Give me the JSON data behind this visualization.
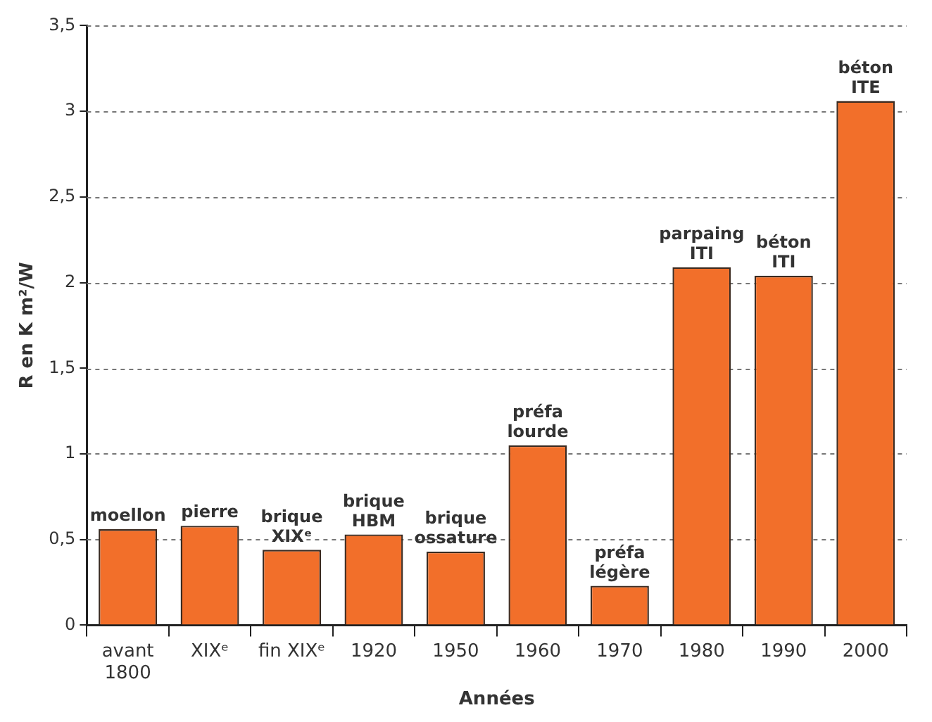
{
  "chart_data": {
    "type": "bar",
    "xlabel": "Années",
    "ylabel": "R en K m²/W",
    "categories": [
      "avant\n1800",
      "XIXᵉ",
      "fin XIXᵉ",
      "1920",
      "1950",
      "1960",
      "1970",
      "1980",
      "1990",
      "2000"
    ],
    "values": [
      0.56,
      0.58,
      0.44,
      0.53,
      0.43,
      1.05,
      0.23,
      2.09,
      2.04,
      3.06
    ],
    "color": "#f26f2a",
    "ylim": [
      0,
      3.5
    ],
    "yticks": [
      0,
      {
        "value": 0.5,
        "label": "0,5"
      },
      1,
      {
        "value": 1.5,
        "label": "1,5"
      },
      2,
      {
        "value": 2.5,
        "label": "2,5"
      },
      3,
      {
        "value": 3.5,
        "label": "3,5"
      }
    ],
    "grid": "y",
    "annotations": [
      {
        "text": "moellon",
        "x": "avant\n1800",
        "y": 0.56
      },
      {
        "text": "pierre",
        "x": "XIXᵉ",
        "y": 0.58
      },
      {
        "text": "brique\nXIXᵉ",
        "x": "fin XIXᵉ",
        "y": 0.44
      },
      {
        "text": "brique\nHBM",
        "x": "1920",
        "y": 0.53
      },
      {
        "text": "brique\nossature",
        "x": "1950",
        "y": 0.43
      },
      {
        "text": "préfa\nlourde",
        "x": "1960",
        "y": 1.05
      },
      {
        "text": "préfa\nlégère",
        "x": "1970",
        "y": 0.23
      },
      {
        "text": "parpaing\nITI",
        "x": "1980",
        "y": 2.09
      },
      {
        "text": "béton\nITI",
        "x": "1990",
        "y": 2.04
      },
      {
        "text": "béton\nITE",
        "x": "2000",
        "y": 3.06
      }
    ]
  }
}
